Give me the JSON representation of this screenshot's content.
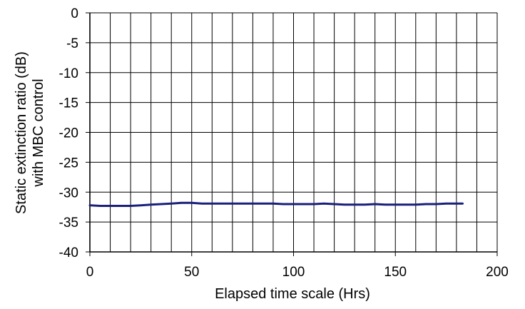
{
  "chart_data": {
    "type": "line",
    "title": "",
    "xlabel": "Elapsed time scale (Hrs)",
    "ylabel_lines": [
      "Static extinction ratio (dB)",
      "with MBC control"
    ],
    "xlim": [
      0,
      200
    ],
    "ylim": [
      -40,
      0
    ],
    "x_ticks": [
      0,
      50,
      100,
      150,
      200
    ],
    "x_tick_labels": [
      "0",
      "50",
      "100",
      "150",
      "200"
    ],
    "x_minor_grid_step": 10,
    "y_ticks": [
      0,
      -5,
      -10,
      -15,
      -20,
      -25,
      -30,
      -35,
      -40
    ],
    "y_tick_labels": [
      "0",
      "-5",
      "-10",
      "-15",
      "-20",
      "-25",
      "-30",
      "-35",
      "-40"
    ],
    "grid": true,
    "legend": "none",
    "series": [
      {
        "color": "#1a1f7a",
        "x": [
          0,
          5,
          10,
          15,
          20,
          25,
          30,
          35,
          40,
          45,
          50,
          55,
          60,
          65,
          70,
          75,
          80,
          85,
          90,
          95,
          100,
          105,
          110,
          115,
          120,
          125,
          130,
          135,
          140,
          145,
          150,
          155,
          160,
          165,
          170,
          175,
          180,
          183
        ],
        "y": [
          -32.2,
          -32.3,
          -32.3,
          -32.3,
          -32.3,
          -32.2,
          -32.1,
          -32.0,
          -31.9,
          -31.8,
          -31.8,
          -31.9,
          -31.9,
          -31.9,
          -31.9,
          -31.9,
          -31.9,
          -31.9,
          -31.9,
          -32.0,
          -32.0,
          -32.0,
          -32.0,
          -31.9,
          -32.0,
          -32.1,
          -32.1,
          -32.1,
          -32.0,
          -32.1,
          -32.1,
          -32.1,
          -32.1,
          -32.0,
          -32.0,
          -31.9,
          -31.9,
          -31.9
        ]
      }
    ]
  }
}
